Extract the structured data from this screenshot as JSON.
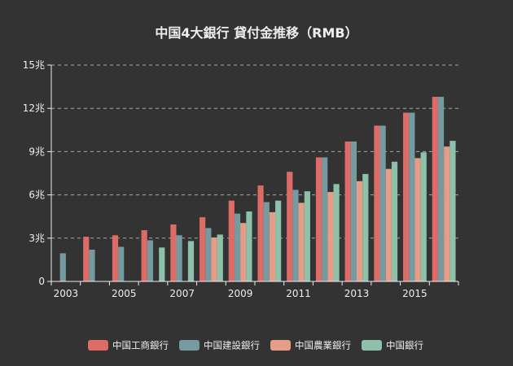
{
  "chart_data": {
    "type": "bar",
    "title": "中国4大銀行 貸付金推移（RMB）",
    "categories": [
      "2003",
      "2004",
      "2005",
      "2006",
      "2007",
      "2008",
      "2009",
      "2010",
      "2011",
      "2012",
      "2013",
      "2014",
      "2015",
      "2016"
    ],
    "x_tick_labels": [
      "2003",
      "2005",
      "2007",
      "2009",
      "2011",
      "2013",
      "2015"
    ],
    "y_ticks": [
      {
        "value": 0,
        "label": "0"
      },
      {
        "value": 3,
        "label": "3兆"
      },
      {
        "value": 6,
        "label": "6兆"
      },
      {
        "value": 9,
        "label": "9兆"
      },
      {
        "value": 12,
        "label": "12兆"
      },
      {
        "value": 15,
        "label": "15兆"
      }
    ],
    "ylim": [
      0,
      15
    ],
    "grid": true,
    "legend_position": "bottom",
    "series": [
      {
        "name": "中国工商銀行",
        "color": "#dd6b66",
        "values": [
          null,
          3.1,
          3.2,
          3.55,
          3.95,
          4.45,
          5.6,
          6.65,
          7.6,
          8.6,
          9.7,
          10.8,
          11.7,
          12.8
        ]
      },
      {
        "name": "中国建設銀行",
        "color": "#759aa0",
        "values": [
          1.95,
          2.2,
          2.4,
          2.85,
          3.2,
          3.7,
          4.7,
          5.5,
          6.35,
          8.6,
          9.7,
          10.8,
          11.7,
          12.8
        ]
      },
      {
        "name": "中国農業銀行",
        "color": "#e69d87",
        "values": [
          null,
          null,
          null,
          null,
          null,
          3.05,
          4.05,
          4.8,
          5.45,
          6.2,
          6.95,
          7.8,
          8.55,
          9.35
        ]
      },
      {
        "name": "中国銀行",
        "color": "#8dc1a9",
        "values": [
          null,
          null,
          null,
          2.35,
          2.8,
          3.25,
          4.85,
          5.6,
          6.25,
          6.75,
          7.45,
          8.3,
          8.95,
          9.75
        ]
      }
    ]
  },
  "colors": {
    "background": "#333333",
    "text": "#eeeeee",
    "grid": "#aaaaaa",
    "axis": "#eeeeee"
  }
}
